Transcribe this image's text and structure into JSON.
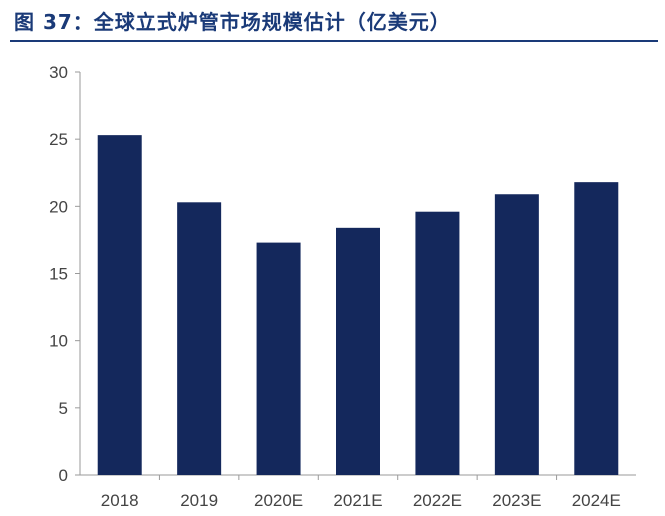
{
  "title": "图 37：全球立式炉管市场规模估计（亿美元）",
  "colors": {
    "title": "#1a3a78",
    "bar": "#14285c",
    "axis": "#9a9a9a",
    "tick_text": "#444444"
  },
  "chart_data": {
    "type": "bar",
    "title": "全球立式炉管市场规模估计（亿美元）",
    "xlabel": "",
    "ylabel": "",
    "categories": [
      "2018",
      "2019",
      "2020E",
      "2021E",
      "2022E",
      "2023E",
      "2024E"
    ],
    "values": [
      25.3,
      20.3,
      17.3,
      18.4,
      19.6,
      20.9,
      21.8
    ],
    "ylim": [
      0,
      30
    ],
    "yticks": [
      "0",
      "5",
      "10",
      "15",
      "20",
      "25",
      "30"
    ],
    "grid": false,
    "legend": "none"
  }
}
